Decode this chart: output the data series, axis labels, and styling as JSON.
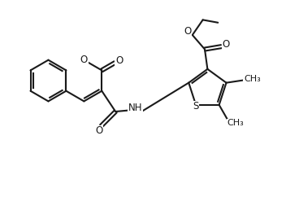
{
  "bg_color": "#ffffff",
  "line_color": "#1a1a1a",
  "line_width": 1.5,
  "font_size": 8.5,
  "figsize": [
    3.52,
    2.42
  ],
  "dpi": 100,
  "xlim": [
    0,
    10
  ],
  "ylim": [
    0,
    7
  ]
}
